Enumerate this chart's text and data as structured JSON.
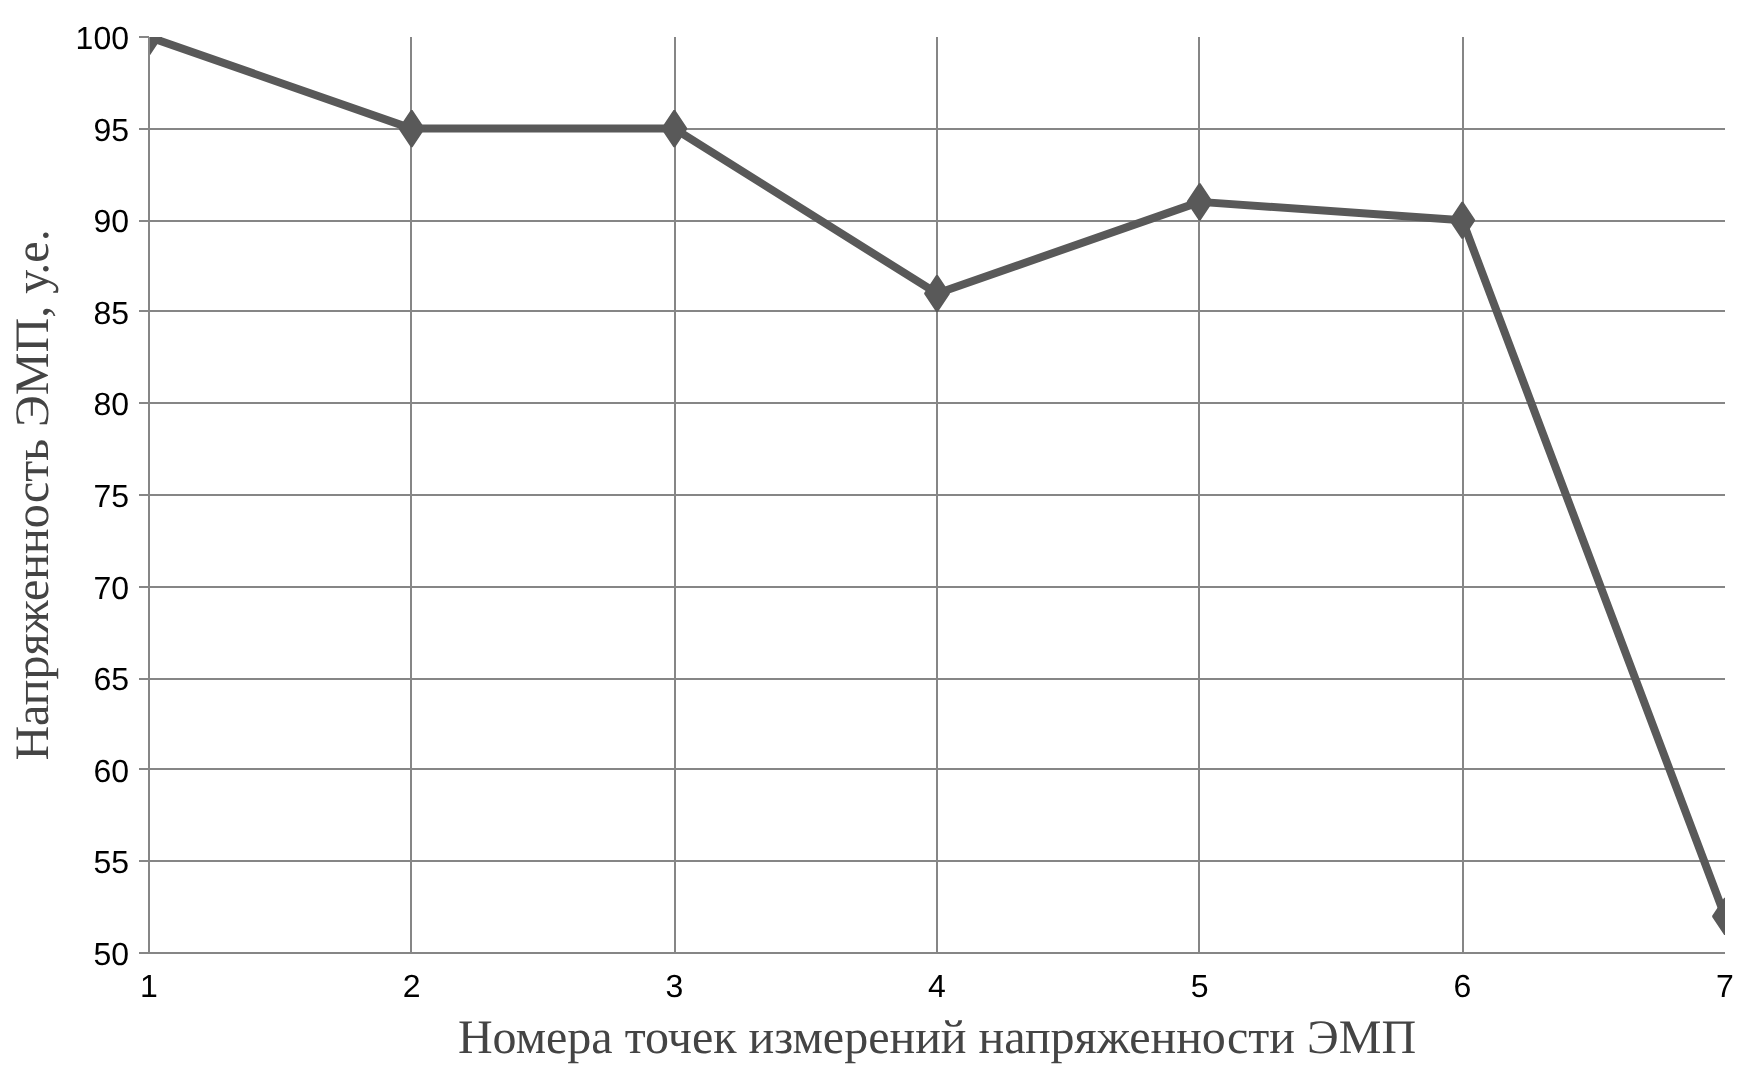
{
  "chart_data": {
    "type": "line",
    "xlabel": "Номера точек измерений напряженности ЭМП",
    "ylabel": "Напряженность ЭМП, у.е.",
    "x": [
      1,
      2,
      3,
      4,
      5,
      6,
      7
    ],
    "series": [
      {
        "color": "#595959",
        "values": [
          100,
          95,
          95,
          86,
          91,
          90,
          52
        ]
      }
    ],
    "xlim": [
      1,
      7
    ],
    "xticks": [
      1,
      2,
      3,
      4,
      5,
      6,
      7
    ],
    "ylim": [
      50,
      100
    ],
    "yticks": [
      50,
      55,
      60,
      65,
      70,
      75,
      80,
      85,
      90,
      95,
      100
    ],
    "grid": true,
    "marker": "diamond",
    "line_style": "solid"
  }
}
